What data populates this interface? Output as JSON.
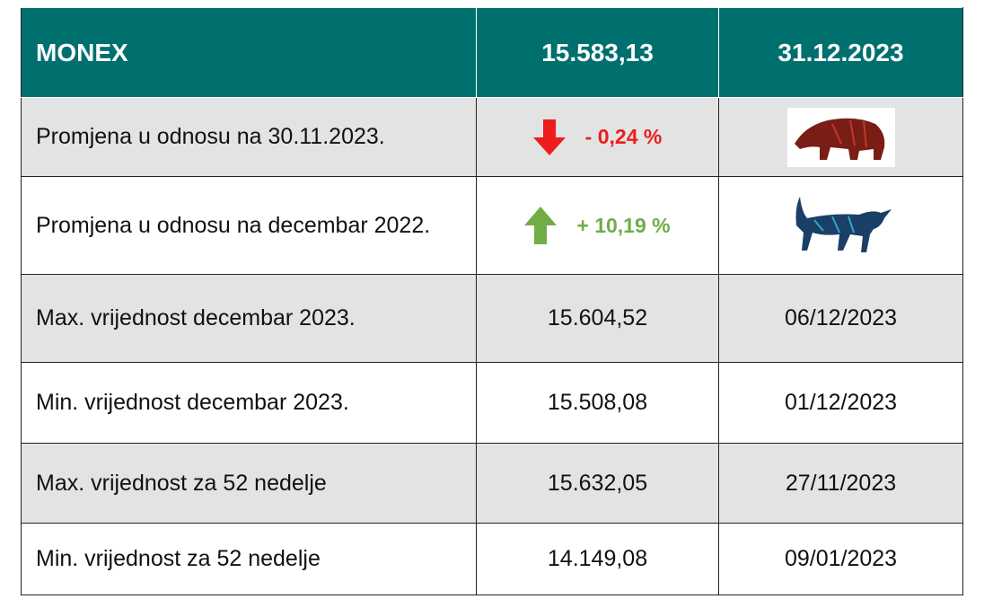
{
  "header": [
    "MONEX",
    "15.583,13",
    "31.12.2023"
  ],
  "rows": [
    [
      "Promjena u odnosu na 30.11.2023.",
      "- 0,24 %"
    ],
    [
      "Promjena u odnosu na decembar 2022.",
      "+ 10,19 %"
    ],
    [
      "Max. vrijednost decembar 2023.",
      "15.604,52",
      "06/12/2023"
    ],
    [
      "Min. vrijednost decembar 2023.",
      "15.508,08",
      "01/12/2023"
    ],
    [
      "Max. vrijednost za 52 nedelje",
      "15.632,05",
      "27/11/2023"
    ],
    [
      "Min. vrijednost za 52 nedelje",
      "14.149,08",
      "09/01/2023"
    ]
  ]
}
